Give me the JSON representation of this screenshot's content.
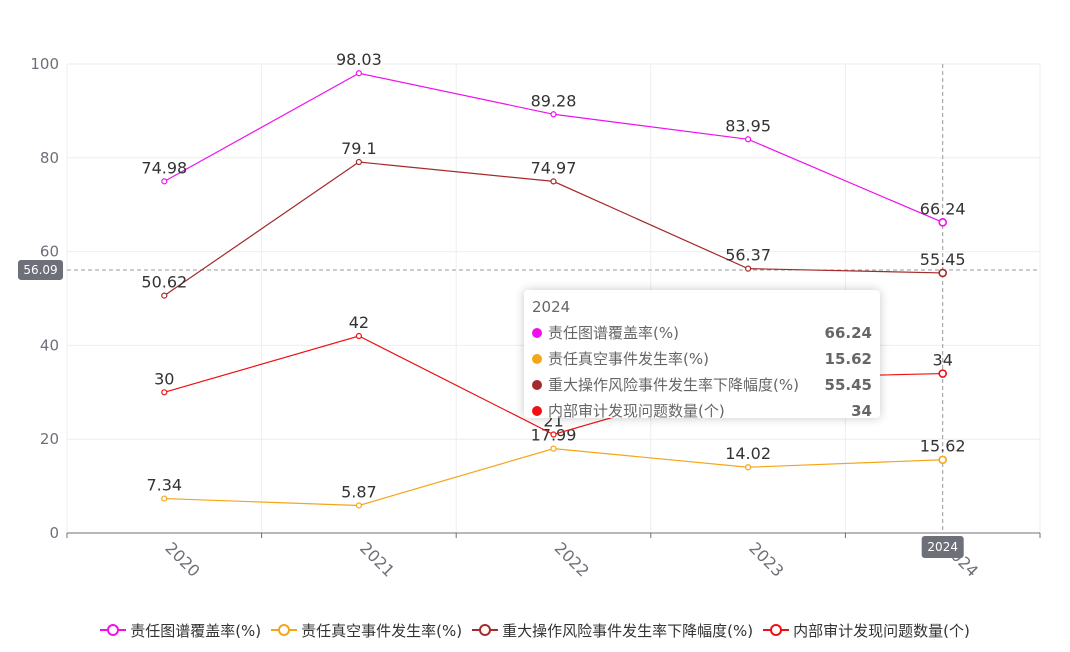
{
  "chart_data": {
    "type": "line",
    "categories": [
      "2020",
      "2021",
      "2022",
      "2023",
      "2024"
    ],
    "ylim": [
      0,
      100
    ],
    "yticks": [
      0,
      20,
      40,
      60,
      80,
      100
    ],
    "grid": true,
    "legend_position": "bottom-center",
    "series": [
      {
        "name": "责任图谱覆盖率(%)",
        "color": "#ee11ee",
        "values": [
          74.98,
          98.03,
          89.28,
          83.95,
          66.24
        ]
      },
      {
        "name": "责任真空事件发生率(%)",
        "color": "#f5a518",
        "values": [
          7.34,
          5.87,
          17.99,
          14.02,
          15.62
        ]
      },
      {
        "name": "重大操作风险事件发生率下降幅度(%)",
        "color": "#a52a2a",
        "values": [
          50.62,
          79.1,
          74.97,
          56.37,
          55.45
        ]
      },
      {
        "name": "内部审计发现问题数量(个)",
        "color": "#ee1111",
        "values": [
          30,
          42,
          21,
          33,
          34
        ]
      }
    ],
    "crosshair": {
      "y_value": 56.09,
      "y_label": "56.09",
      "x_category": "2024",
      "x_label": "2024"
    }
  },
  "tooltip": {
    "title": "2024",
    "rows": [
      {
        "name": "责任图谱覆盖率(%)",
        "value": "66.24",
        "color": "#ee11ee"
      },
      {
        "name": "责任真空事件发生率(%)",
        "value": "15.62",
        "color": "#f5a518"
      },
      {
        "name": "重大操作风险事件发生率下降幅度(%)",
        "value": "55.45",
        "color": "#a52a2a"
      },
      {
        "name": "内部审计发现问题数量(个)",
        "value": "34",
        "color": "#ee1111"
      }
    ]
  }
}
